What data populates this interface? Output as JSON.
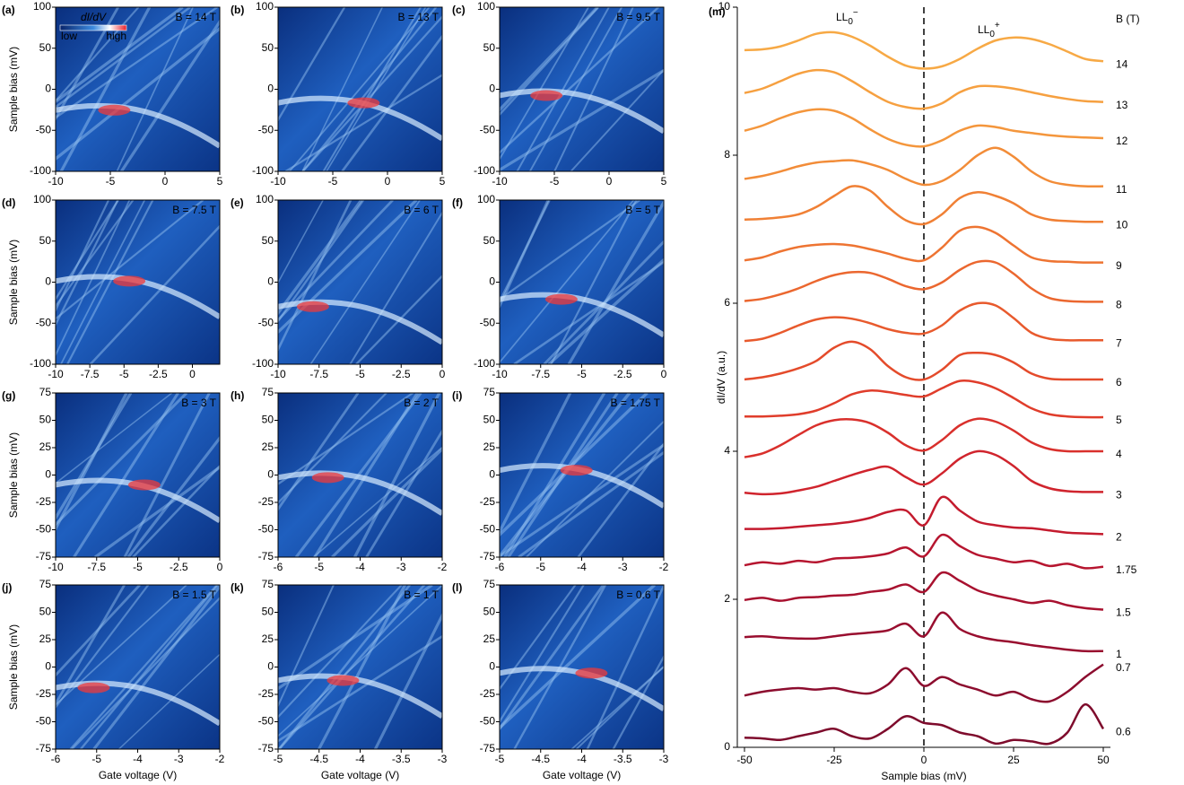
{
  "chart_data": [
    {
      "type": "heatmap",
      "panel_label": "(a)",
      "annotation": "B = 14 T",
      "xlim": [
        -10,
        5
      ],
      "xticks": [
        -10,
        -5,
        0,
        5
      ],
      "ylim": [
        -100,
        100
      ],
      "yticks": [
        -100,
        -50,
        0,
        50,
        100
      ],
      "ylabel": "Sample bias (mV)",
      "colorbar": {
        "title": "dI/dV",
        "low": "low",
        "high": "high"
      }
    },
    {
      "type": "heatmap",
      "panel_label": "(b)",
      "annotation": "B = 13 T",
      "xlim": [
        -10,
        5
      ],
      "xticks": [
        -10,
        -5,
        0,
        5
      ],
      "ylim": [
        -100,
        100
      ],
      "yticks": [
        -100,
        -50,
        0,
        50,
        100
      ]
    },
    {
      "type": "heatmap",
      "panel_label": "(c)",
      "annotation": "B = 9.5 T",
      "xlim": [
        -10,
        5
      ],
      "xticks": [
        -10,
        -5,
        0,
        5
      ],
      "ylim": [
        -100,
        100
      ],
      "yticks": [
        -100,
        -50,
        0,
        50,
        100
      ]
    },
    {
      "type": "heatmap",
      "panel_label": "(d)",
      "annotation": "B = 7.5 T",
      "xlim": [
        -10,
        2
      ],
      "xticks": [
        -10,
        -7.5,
        -5,
        -2.5,
        0
      ],
      "ylim": [
        -100,
        100
      ],
      "yticks": [
        -100,
        -50,
        0,
        50,
        100
      ],
      "ylabel": "Sample bias (mV)"
    },
    {
      "type": "heatmap",
      "panel_label": "(e)",
      "annotation": "B = 6 T",
      "xlim": [
        -10,
        0
      ],
      "xticks": [
        -10,
        -7.5,
        -5,
        -2.5,
        0
      ],
      "ylim": [
        -100,
        100
      ],
      "yticks": [
        -100,
        -50,
        0,
        50,
        100
      ]
    },
    {
      "type": "heatmap",
      "panel_label": "(f)",
      "annotation": "B = 5 T",
      "xlim": [
        -10,
        0
      ],
      "xticks": [
        -10,
        -7.5,
        -5,
        -2.5,
        0
      ],
      "ylim": [
        -100,
        100
      ],
      "yticks": [
        -100,
        -50,
        0,
        50,
        100
      ]
    },
    {
      "type": "heatmap",
      "panel_label": "(g)",
      "annotation": "B = 3 T",
      "xlim": [
        -10,
        0
      ],
      "xticks": [
        -10,
        -7.5,
        -5,
        -2.5,
        0
      ],
      "ylim": [
        -75,
        75
      ],
      "yticks": [
        -75,
        -50,
        -25,
        0,
        25,
        50,
        75
      ],
      "ylabel": "Sample bias (mV)"
    },
    {
      "type": "heatmap",
      "panel_label": "(h)",
      "annotation": "B = 2 T",
      "xlim": [
        -6,
        -2
      ],
      "xticks": [
        -6,
        -5,
        -4,
        -3,
        -2
      ],
      "ylim": [
        -75,
        75
      ],
      "yticks": [
        -75,
        -50,
        -25,
        0,
        25,
        50,
        75
      ]
    },
    {
      "type": "heatmap",
      "panel_label": "(i)",
      "annotation": "B = 1.75 T",
      "xlim": [
        -6,
        -2
      ],
      "xticks": [
        -6,
        -5,
        -4,
        -3,
        -2
      ],
      "ylim": [
        -75,
        75
      ],
      "yticks": [
        -75,
        -50,
        -25,
        0,
        25,
        50,
        75
      ]
    },
    {
      "type": "heatmap",
      "panel_label": "(j)",
      "annotation": "B = 1.5 T",
      "xlim": [
        -6,
        -2
      ],
      "xticks": [
        -6,
        -5,
        -4,
        -3,
        -2
      ],
      "ylim": [
        -75,
        75
      ],
      "yticks": [
        -75,
        -50,
        -25,
        0,
        25,
        50,
        75
      ],
      "ylabel": "Sample bias (mV)",
      "xlabel": "Gate voltage (V)"
    },
    {
      "type": "heatmap",
      "panel_label": "(k)",
      "annotation": "B = 1 T",
      "xlim": [
        -5,
        -3
      ],
      "xticks": [
        -5,
        -4.5,
        -4,
        -3.5,
        -3
      ],
      "ylim": [
        -75,
        75
      ],
      "yticks": [
        -75,
        -50,
        -25,
        0,
        25,
        50,
        75
      ],
      "xlabel": "Gate voltage (V)"
    },
    {
      "type": "heatmap",
      "panel_label": "(l)",
      "annotation": "B = 0.6 T",
      "xlim": [
        -5,
        -3
      ],
      "xticks": [
        -5,
        -4.5,
        -4,
        -3.5,
        -3
      ],
      "ylim": [
        -75,
        75
      ],
      "yticks": [
        -75,
        -50,
        -25,
        0,
        25,
        50,
        75
      ],
      "xlabel": "Gate voltage (V)"
    },
    {
      "type": "line",
      "panel_label": "(m)",
      "xlabel": "Sample bias (mV)",
      "ylabel": "dI/dV (a.u.)",
      "legend_title": "B (T)",
      "annotations": [
        {
          "text": "LL",
          "sub": "0",
          "sup": "−"
        },
        {
          "text": "LL",
          "sub": "0",
          "sup": "+"
        }
      ],
      "xlim": [
        -52,
        52
      ],
      "xticks": [
        -50,
        -25,
        0,
        25,
        50
      ],
      "ylim": [
        0,
        10
      ],
      "yticks": [
        0,
        2,
        4,
        6,
        8,
        10
      ],
      "x": [
        -50,
        -45,
        -40,
        -35,
        -30,
        -25,
        -20,
        -15,
        -10,
        -5,
        0,
        5,
        10,
        15,
        20,
        25,
        30,
        35,
        40,
        45,
        50
      ],
      "series": [
        {
          "name": "14",
          "color": "#f7a945",
          "values": [
            9.42,
            9.43,
            9.47,
            9.55,
            9.64,
            9.66,
            9.6,
            9.48,
            9.33,
            9.21,
            9.17,
            9.2,
            9.3,
            9.44,
            9.55,
            9.59,
            9.57,
            9.5,
            9.4,
            9.3,
            9.27
          ]
        },
        {
          "name": "13",
          "color": "#f6a040",
          "values": [
            8.84,
            8.9,
            9.0,
            9.1,
            9.15,
            9.12,
            9.0,
            8.85,
            8.72,
            8.65,
            8.63,
            8.7,
            8.85,
            8.93,
            8.93,
            8.9,
            8.85,
            8.8,
            8.76,
            8.73,
            8.72
          ]
        },
        {
          "name": "12",
          "color": "#f4963c",
          "values": [
            8.33,
            8.4,
            8.5,
            8.58,
            8.62,
            8.6,
            8.5,
            8.35,
            8.22,
            8.14,
            8.12,
            8.2,
            8.33,
            8.4,
            8.38,
            8.33,
            8.3,
            8.27,
            8.25,
            8.24,
            8.23
          ]
        },
        {
          "name": "11",
          "color": "#f28c38",
          "values": [
            7.68,
            7.72,
            7.78,
            7.85,
            7.9,
            7.92,
            7.93,
            7.88,
            7.8,
            7.68,
            7.6,
            7.65,
            7.8,
            8.0,
            8.1,
            7.98,
            7.78,
            7.65,
            7.6,
            7.58,
            7.58
          ]
        },
        {
          "name": "10",
          "color": "#f08035",
          "values": [
            7.13,
            7.14,
            7.16,
            7.2,
            7.3,
            7.45,
            7.58,
            7.52,
            7.3,
            7.12,
            7.07,
            7.2,
            7.42,
            7.5,
            7.45,
            7.35,
            7.2,
            7.13,
            7.11,
            7.1,
            7.1
          ]
        },
        {
          "name": "9",
          "color": "#ee7432",
          "values": [
            6.58,
            6.62,
            6.7,
            6.76,
            6.79,
            6.8,
            6.78,
            6.73,
            6.67,
            6.6,
            6.58,
            6.75,
            6.98,
            7.03,
            6.95,
            6.78,
            6.62,
            6.57,
            6.56,
            6.55,
            6.55
          ]
        },
        {
          "name": "8",
          "color": "#eb672f",
          "values": [
            6.03,
            6.06,
            6.12,
            6.2,
            6.3,
            6.38,
            6.42,
            6.41,
            6.33,
            6.23,
            6.19,
            6.28,
            6.45,
            6.56,
            6.55,
            6.4,
            6.2,
            6.07,
            6.03,
            6.02,
            6.02
          ]
        },
        {
          "name": "7",
          "color": "#e85a2d",
          "values": [
            5.49,
            5.52,
            5.6,
            5.7,
            5.78,
            5.81,
            5.79,
            5.73,
            5.65,
            5.6,
            5.59,
            5.7,
            5.9,
            6.0,
            5.97,
            5.8,
            5.6,
            5.52,
            5.5,
            5.5,
            5.5
          ]
        },
        {
          "name": "6",
          "color": "#e44b2b",
          "values": [
            4.97,
            5.0,
            5.05,
            5.12,
            5.22,
            5.4,
            5.48,
            5.38,
            5.15,
            5.0,
            4.97,
            5.1,
            5.3,
            5.33,
            5.3,
            5.2,
            5.05,
            4.98,
            4.97,
            4.97,
            4.97
          ]
        },
        {
          "name": "5",
          "color": "#e03d2b",
          "values": [
            4.47,
            4.47,
            4.48,
            4.5,
            4.55,
            4.65,
            4.77,
            4.82,
            4.8,
            4.76,
            4.74,
            4.85,
            4.95,
            4.93,
            4.85,
            4.72,
            4.58,
            4.5,
            4.47,
            4.46,
            4.46
          ]
        },
        {
          "name": "4",
          "color": "#d9302c",
          "values": [
            3.92,
            3.97,
            4.08,
            4.22,
            4.35,
            4.42,
            4.43,
            4.38,
            4.25,
            4.08,
            4.01,
            4.15,
            4.35,
            4.44,
            4.4,
            4.28,
            4.12,
            4.03,
            4.0,
            4.0,
            4.0
          ]
        },
        {
          "name": "3",
          "color": "#d0242d",
          "values": [
            3.44,
            3.42,
            3.43,
            3.47,
            3.52,
            3.6,
            3.68,
            3.75,
            3.79,
            3.65,
            3.55,
            3.7,
            3.9,
            4.0,
            3.95,
            3.8,
            3.6,
            3.5,
            3.46,
            3.45,
            3.45
          ]
        },
        {
          "name": "2",
          "color": "#c41b2e",
          "values": [
            2.95,
            2.95,
            2.96,
            2.98,
            3.0,
            3.02,
            3.05,
            3.1,
            3.18,
            3.2,
            3.0,
            3.38,
            3.2,
            3.05,
            3.0,
            2.97,
            2.96,
            2.93,
            2.9,
            2.89,
            2.88
          ]
        },
        {
          "name": "1.75",
          "color": "#b6152f",
          "values": [
            2.46,
            2.5,
            2.48,
            2.52,
            2.5,
            2.55,
            2.56,
            2.58,
            2.62,
            2.7,
            2.58,
            2.87,
            2.72,
            2.6,
            2.55,
            2.5,
            2.52,
            2.45,
            2.48,
            2.42,
            2.44
          ]
        },
        {
          "name": "1.5",
          "color": "#a8112f",
          "values": [
            1.99,
            2.02,
            1.98,
            2.02,
            2.03,
            2.05,
            2.06,
            2.1,
            2.13,
            2.2,
            2.1,
            2.36,
            2.25,
            2.12,
            2.05,
            2.0,
            1.95,
            1.98,
            1.92,
            1.88,
            1.86
          ]
        },
        {
          "name": "1",
          "color": "#990e2f",
          "values": [
            1.49,
            1.5,
            1.48,
            1.47,
            1.47,
            1.5,
            1.53,
            1.55,
            1.58,
            1.67,
            1.5,
            1.82,
            1.6,
            1.5,
            1.45,
            1.42,
            1.38,
            1.35,
            1.32,
            1.3,
            1.3
          ]
        },
        {
          "name": "0.7",
          "color": "#8c0c2e",
          "values": [
            0.7,
            0.75,
            0.78,
            0.8,
            0.78,
            0.8,
            0.75,
            0.73,
            0.85,
            1.07,
            0.83,
            0.95,
            0.85,
            0.78,
            0.7,
            0.75,
            0.65,
            0.62,
            0.75,
            0.95,
            1.12
          ]
        },
        {
          "name": "0.6",
          "color": "#7e0b2c",
          "values": [
            0.13,
            0.12,
            0.1,
            0.15,
            0.2,
            0.25,
            0.15,
            0.12,
            0.25,
            0.42,
            0.33,
            0.3,
            0.2,
            0.15,
            0.05,
            0.1,
            0.08,
            0.05,
            0.2,
            0.58,
            0.25
          ]
        }
      ]
    }
  ]
}
